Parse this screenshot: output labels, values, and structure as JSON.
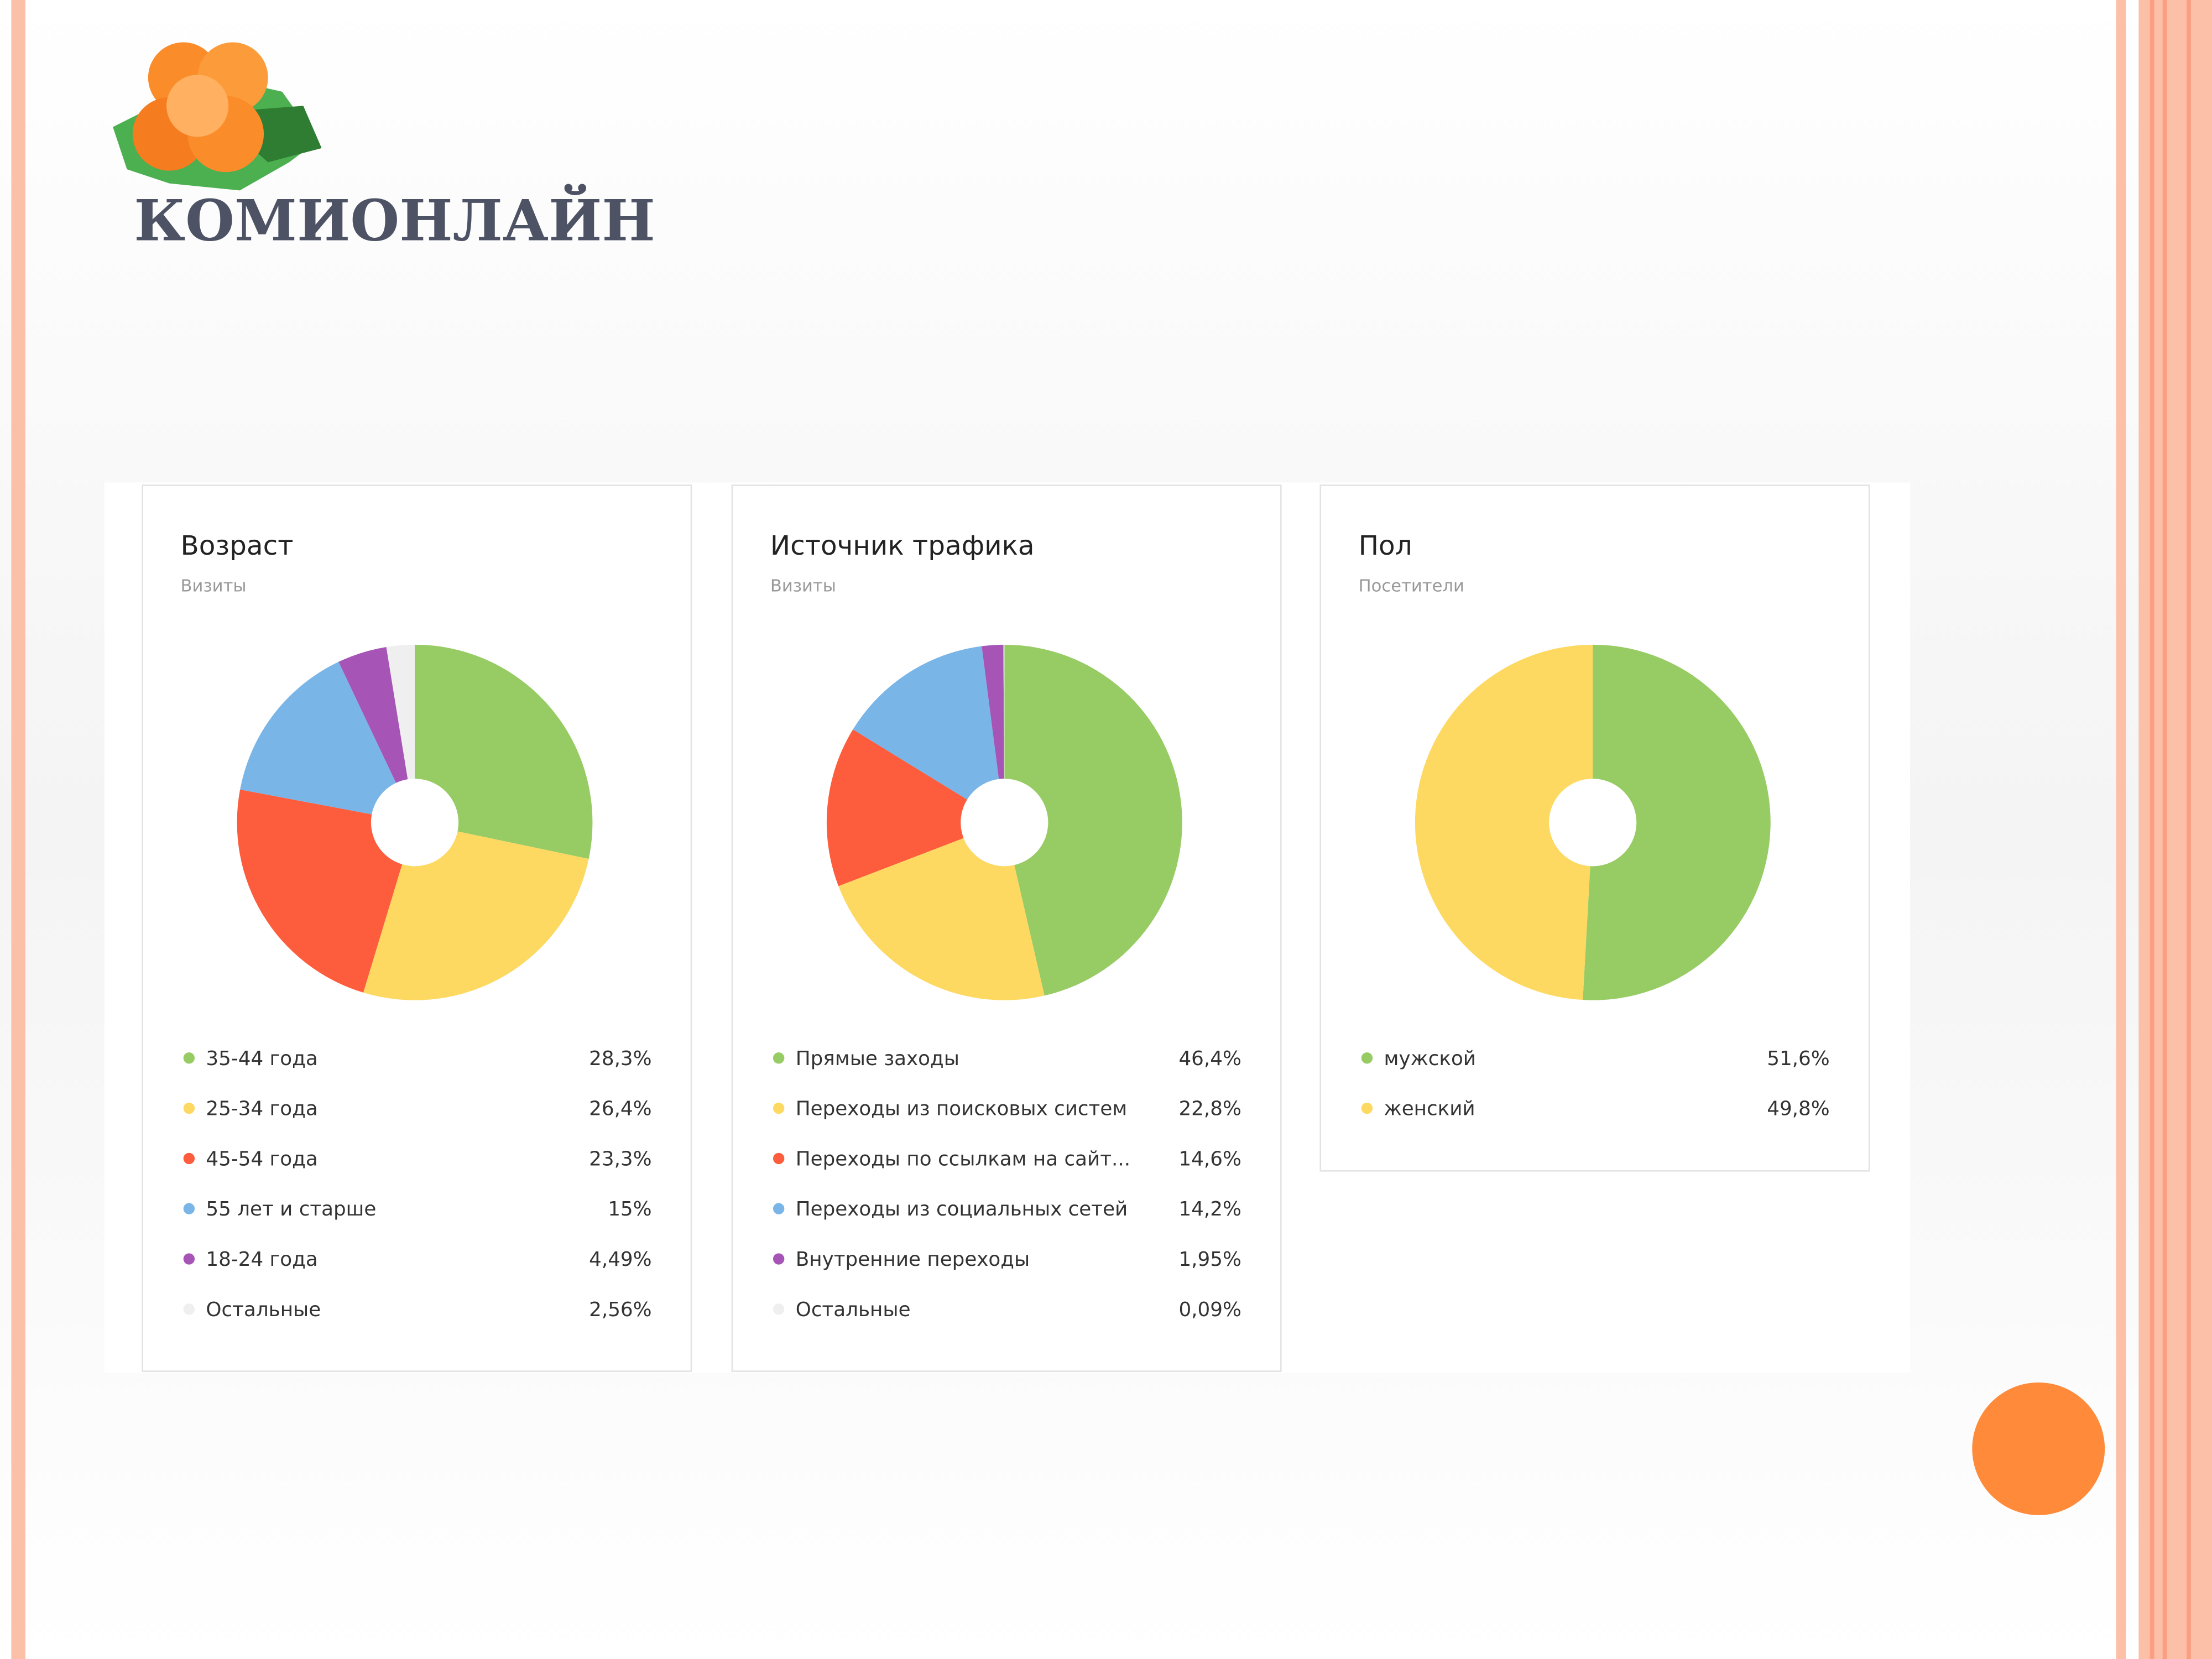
{
  "header": {
    "title": "КОМИОНЛАЙН"
  },
  "chart_data": [
    {
      "type": "pie",
      "title": "Возраст",
      "subtitle": "Визиты",
      "categories": [
        "35-44 года",
        "25-34 года",
        "45-54 года",
        "55 лет и старше",
        "18-24 года",
        "Остальные"
      ],
      "values": [
        28.3,
        26.4,
        23.3,
        15,
        4.49,
        2.56
      ],
      "value_labels": [
        "28,3%",
        "26,4%",
        "23,3%",
        "15%",
        "4,49%",
        "2,56%"
      ],
      "colors": [
        "#97cb63",
        "#fdd961",
        "#fd5c3d",
        "#79b5e6",
        "#a654b6",
        "#efefef"
      ]
    },
    {
      "type": "pie",
      "title": "Источник трафика",
      "subtitle": "Визиты",
      "categories": [
        "Прямые заходы",
        "Переходы из поисковых систем",
        "Переходы по ссылкам на сайт...",
        "Переходы из социальных сетей",
        "Внутренние переходы",
        "Остальные"
      ],
      "values": [
        46.4,
        22.8,
        14.6,
        14.2,
        1.95,
        0.09
      ],
      "value_labels": [
        "46,4%",
        "22,8%",
        "14,6%",
        "14,2%",
        "1,95%",
        "0,09%"
      ],
      "colors": [
        "#97cb63",
        "#fdd961",
        "#fd5c3d",
        "#79b5e6",
        "#a654b6",
        "#efefef"
      ]
    },
    {
      "type": "pie",
      "title": "Пол",
      "subtitle": "Посетители",
      "categories": [
        "мужской",
        "женский"
      ],
      "values": [
        51.6,
        49.8
      ],
      "value_labels": [
        "51,6%",
        "49,8%"
      ],
      "colors": [
        "#97cb63",
        "#fdd961"
      ]
    }
  ]
}
